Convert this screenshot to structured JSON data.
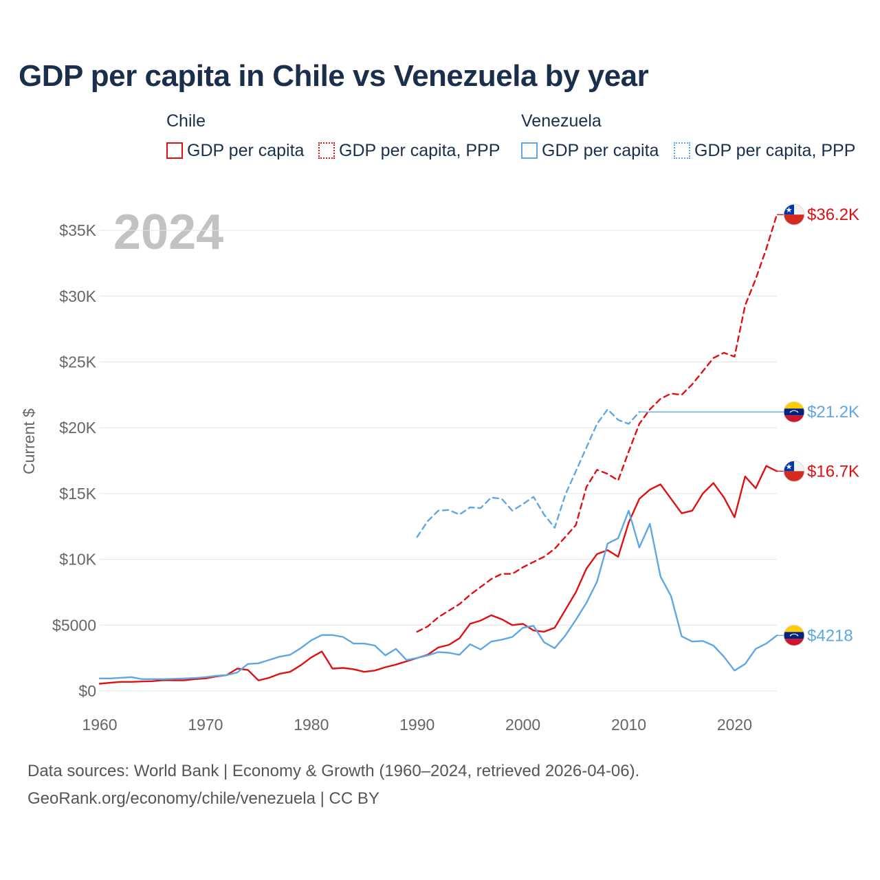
{
  "title": "GDP per capita in Chile vs Venezuela by year",
  "legend": {
    "chile": {
      "title": "Chile",
      "items": [
        "GDP per capita",
        "GDP per capita, PPP"
      ]
    },
    "venezuela": {
      "title": "Venezuela",
      "items": [
        "GDP per capita",
        "GDP per capita, PPP"
      ]
    }
  },
  "source": {
    "line1": "Data sources: World Bank | Economy & Growth (1960–2024, retrieved 2026-04-06).",
    "line2": "GeoRank.org/economy/chile/venezuela | CC BY"
  },
  "colors": {
    "chile": "#e00f12",
    "venezuela": "#5ea7e4",
    "grid": "#e4e4e4",
    "axis_text": "#666666",
    "year_watermark": "#c2c2c2"
  },
  "chart_data": {
    "type": "line",
    "year_label": "2024",
    "ylabel": "Current $",
    "xlim": [
      1960,
      2024
    ],
    "ylim": [
      0,
      36200
    ],
    "x_ticks": [
      1960,
      1970,
      1980,
      1990,
      2000,
      2010,
      2020
    ],
    "y_ticks": [
      {
        "value": 0,
        "label": "$0"
      },
      {
        "value": 5000,
        "label": "$5000"
      },
      {
        "value": 10000,
        "label": "$10K"
      },
      {
        "value": 15000,
        "label": "$15K"
      },
      {
        "value": 20000,
        "label": "$20K"
      },
      {
        "value": 25000,
        "label": "$25K"
      },
      {
        "value": 30000,
        "label": "$30K"
      },
      {
        "value": 35000,
        "label": "$35K"
      }
    ],
    "series": [
      {
        "name": "Chile GDP per capita",
        "country": "chile",
        "style": "solid",
        "end_label": "$16.7K",
        "hold_to": 2024,
        "x": [
          1960,
          1961,
          1962,
          1963,
          1964,
          1965,
          1966,
          1967,
          1968,
          1969,
          1970,
          1971,
          1972,
          1973,
          1974,
          1975,
          1976,
          1977,
          1978,
          1979,
          1980,
          1981,
          1982,
          1983,
          1984,
          1985,
          1986,
          1987,
          1988,
          1989,
          1990,
          1991,
          1992,
          1993,
          1994,
          1995,
          1996,
          1997,
          1998,
          1999,
          2000,
          2001,
          2002,
          2003,
          2004,
          2005,
          2006,
          2007,
          2008,
          2009,
          2010,
          2011,
          2012,
          2013,
          2014,
          2015,
          2016,
          2017,
          2018,
          2019,
          2020,
          2021,
          2022,
          2023,
          2024
        ],
        "values": [
          550,
          620,
          690,
          690,
          720,
          740,
          820,
          810,
          810,
          900,
          950,
          1100,
          1200,
          1700,
          1600,
          800,
          1000,
          1300,
          1450,
          1950,
          2550,
          3000,
          1700,
          1750,
          1650,
          1450,
          1550,
          1800,
          2000,
          2250,
          2500,
          2750,
          3300,
          3500,
          4000,
          5100,
          5350,
          5750,
          5450,
          5000,
          5100,
          4600,
          4500,
          4800,
          6150,
          7500,
          9300,
          10400,
          10700,
          10200,
          12800,
          14600,
          15300,
          15700,
          14600,
          13500,
          13700,
          15000,
          15800,
          14700,
          13200,
          16300,
          15400,
          17100,
          16700
        ]
      },
      {
        "name": "Chile GDP per capita, PPP",
        "country": "chile",
        "style": "dashed",
        "end_label": "$36.2K",
        "hold_to": 2024,
        "x": [
          1990,
          1991,
          1992,
          1993,
          1994,
          1995,
          1996,
          1997,
          1998,
          1999,
          2000,
          2001,
          2002,
          2003,
          2004,
          2005,
          2006,
          2007,
          2008,
          2009,
          2010,
          2011,
          2012,
          2013,
          2014,
          2015,
          2016,
          2017,
          2018,
          2019,
          2020,
          2021,
          2022,
          2023,
          2024
        ],
        "values": [
          4500,
          4900,
          5600,
          6100,
          6600,
          7300,
          7900,
          8500,
          8900,
          8900,
          9400,
          9800,
          10200,
          10800,
          11700,
          12600,
          15500,
          16800,
          16500,
          16000,
          18200,
          20300,
          21400,
          22200,
          22600,
          22500,
          23300,
          24300,
          25300,
          25700,
          25400,
          29300,
          31300,
          33600,
          36200
        ]
      },
      {
        "name": "Venezuela GDP per capita",
        "country": "venezuela",
        "style": "solid",
        "end_label": "$4218",
        "hold_to": 2024,
        "x": [
          1960,
          1961,
          1962,
          1963,
          1964,
          1965,
          1966,
          1967,
          1968,
          1969,
          1970,
          1971,
          1972,
          1973,
          1974,
          1975,
          1976,
          1977,
          1978,
          1979,
          1980,
          1981,
          1982,
          1983,
          1984,
          1985,
          1986,
          1987,
          1988,
          1989,
          1990,
          1991,
          1992,
          1993,
          1994,
          1995,
          1996,
          1997,
          1998,
          1999,
          2000,
          2001,
          2002,
          2003,
          2004,
          2005,
          2006,
          2007,
          2008,
          2009,
          2010,
          2011,
          2012,
          2013,
          2014,
          2015,
          2016,
          2017,
          2018,
          2019,
          2020,
          2021,
          2022,
          2023,
          2024
        ],
        "values": [
          950,
          950,
          1000,
          1050,
          900,
          900,
          900,
          920,
          950,
          980,
          1050,
          1150,
          1200,
          1400,
          2050,
          2100,
          2350,
          2600,
          2750,
          3250,
          3850,
          4250,
          4250,
          4100,
          3600,
          3600,
          3450,
          2700,
          3200,
          2350,
          2500,
          2700,
          2950,
          2900,
          2750,
          3550,
          3150,
          3750,
          3900,
          4100,
          4800,
          4950,
          3700,
          3250,
          4200,
          5400,
          6700,
          8300,
          11200,
          11600,
          13700,
          10900,
          12700,
          8700,
          7200,
          4150,
          3750,
          3800,
          3450,
          2600,
          1550,
          2050,
          3200,
          3600,
          4218
        ]
      },
      {
        "name": "Venezuela GDP per capita, PPP",
        "country": "venezuela",
        "style": "dashed",
        "end_label": "$21.2K",
        "hold_to": 2024,
        "hold_from": 2011,
        "x": [
          1990,
          1991,
          1992,
          1993,
          1994,
          1995,
          1996,
          1997,
          1998,
          1999,
          2000,
          2001,
          2002,
          2003,
          2004,
          2005,
          2006,
          2007,
          2008,
          2009,
          2010,
          2011
        ],
        "values": [
          11700,
          12900,
          13700,
          13750,
          13400,
          13950,
          13900,
          14700,
          14600,
          13700,
          14200,
          14750,
          13400,
          12400,
          14900,
          16700,
          18500,
          20300,
          21400,
          20600,
          20300,
          21200
        ]
      }
    ]
  }
}
